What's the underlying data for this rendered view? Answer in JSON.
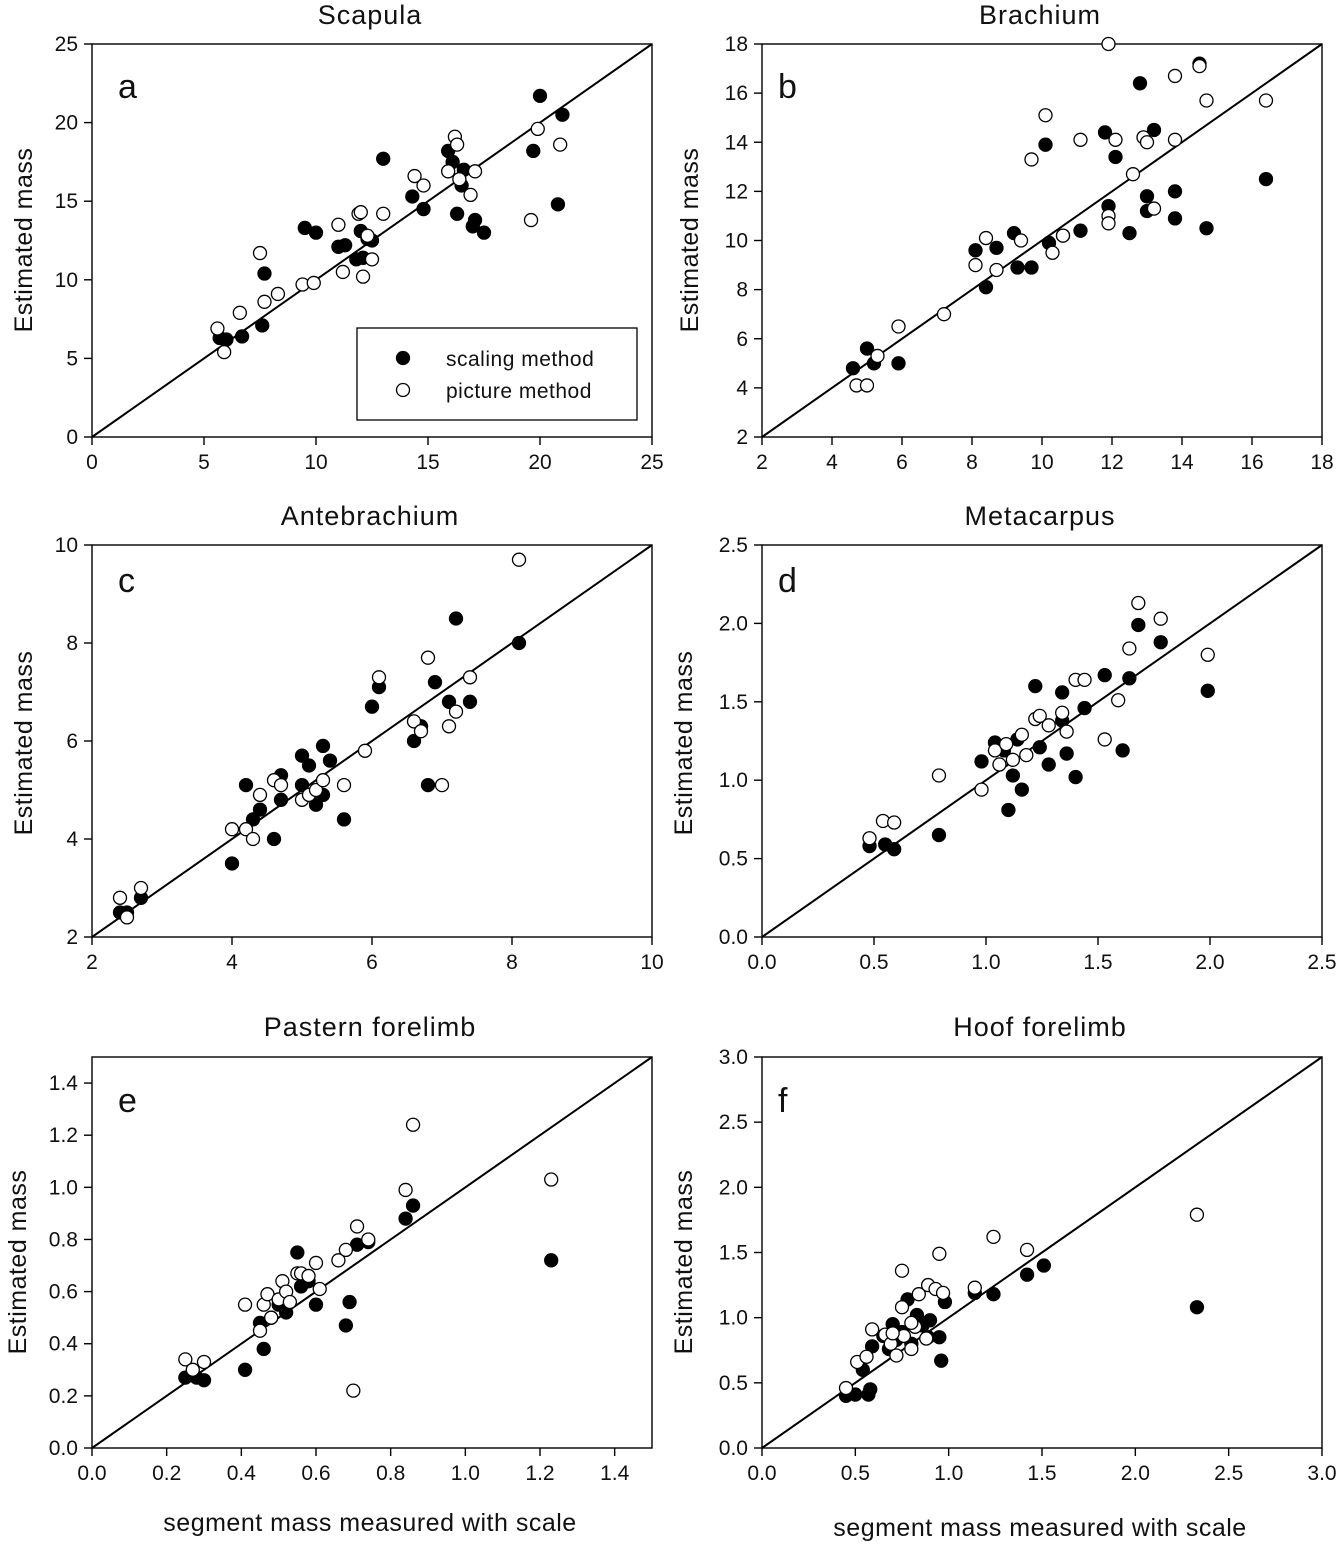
{
  "legend": {
    "scaling_label": "scaling method",
    "picture_label": "picture method"
  },
  "colors": {
    "filled": "#000000",
    "open": "#ffffff",
    "stroke": "#000000"
  },
  "chart_data": [
    {
      "type": "scatter",
      "panel": "a",
      "title": "Scapula",
      "ylabel": "Estimated mass",
      "xlabel": "",
      "xlim": [
        0,
        25
      ],
      "ylim": [
        0,
        25
      ],
      "xticks": [
        0,
        5,
        10,
        15,
        20,
        25
      ],
      "yticks": [
        0,
        5,
        10,
        15,
        20,
        25
      ],
      "tick_labels_x": [
        "0",
        "5",
        "10",
        "15",
        "20",
        "25"
      ],
      "tick_labels_y": [
        "0",
        "5",
        "10",
        "15",
        "20",
        "25"
      ],
      "identity_line": true,
      "legend": "bottom-right",
      "series": [
        {
          "name": "scaling method",
          "marker": "filled",
          "x": [
            5.7,
            6.0,
            6.7,
            7.6,
            7.7,
            9.5,
            10.0,
            11.0,
            11.3,
            11.8,
            12.0,
            12.1,
            12.3,
            12.5,
            13.0,
            14.3,
            14.8,
            15.9,
            16.1,
            16.3,
            16.5,
            16.6,
            17.0,
            17.1,
            17.5,
            19.7,
            20.0,
            20.8,
            21.0
          ],
          "y": [
            6.3,
            6.2,
            6.4,
            7.1,
            10.4,
            13.3,
            13.0,
            12.1,
            12.2,
            11.3,
            13.1,
            11.4,
            12.6,
            12.5,
            17.7,
            15.3,
            14.5,
            18.2,
            17.5,
            14.2,
            16.0,
            17.0,
            13.4,
            13.8,
            13.0,
            18.2,
            21.7,
            14.8,
            20.5
          ]
        },
        {
          "name": "picture method",
          "marker": "open",
          "x": [
            5.6,
            5.9,
            6.6,
            7.5,
            7.7,
            8.3,
            9.4,
            9.9,
            11.0,
            11.2,
            11.9,
            12.0,
            12.1,
            12.3,
            12.5,
            13.0,
            14.4,
            14.8,
            15.9,
            16.2,
            16.3,
            16.4,
            16.9,
            17.1,
            19.6,
            19.9,
            20.9
          ],
          "y": [
            6.9,
            5.4,
            7.9,
            11.7,
            8.6,
            9.1,
            9.7,
            9.8,
            13.5,
            10.5,
            14.2,
            14.3,
            10.2,
            12.8,
            11.3,
            14.2,
            16.6,
            16.0,
            16.9,
            19.1,
            18.6,
            16.4,
            15.4,
            16.9,
            13.8,
            19.6,
            18.6
          ]
        }
      ]
    },
    {
      "type": "scatter",
      "panel": "b",
      "title": "Brachium",
      "ylabel": "Estimated mass",
      "xlabel": "",
      "xlim": [
        2,
        18
      ],
      "ylim": [
        2,
        18
      ],
      "xticks": [
        2,
        4,
        6,
        8,
        10,
        12,
        14,
        16,
        18
      ],
      "yticks": [
        2,
        4,
        6,
        8,
        10,
        12,
        14,
        16,
        18
      ],
      "tick_labels_x": [
        "2",
        "4",
        "6",
        "8",
        "10",
        "12",
        "14",
        "16",
        "18"
      ],
      "tick_labels_y": [
        "2",
        "4",
        "6",
        "8",
        "10",
        "12",
        "14",
        "16",
        "18"
      ],
      "identity_line": true,
      "series": [
        {
          "name": "scaling method",
          "marker": "filled",
          "x": [
            4.6,
            5.0,
            5.2,
            5.9,
            8.1,
            8.4,
            8.7,
            9.2,
            9.3,
            9.7,
            10.1,
            10.2,
            10.6,
            11.1,
            11.8,
            11.9,
            12.1,
            12.5,
            12.8,
            13.0,
            13.0,
            13.2,
            13.8,
            13.8,
            14.5,
            14.7,
            16.4
          ],
          "y": [
            4.8,
            5.6,
            5.0,
            5.0,
            9.6,
            8.1,
            9.7,
            10.3,
            8.9,
            8.9,
            13.9,
            9.9,
            10.2,
            10.4,
            14.4,
            11.4,
            13.4,
            10.3,
            16.4,
            11.8,
            11.2,
            14.5,
            12.0,
            10.9,
            17.2,
            10.5,
            12.5
          ]
        },
        {
          "name": "picture method",
          "marker": "open",
          "x": [
            4.7,
            5.0,
            5.3,
            5.9,
            7.2,
            8.1,
            8.4,
            8.7,
            9.4,
            9.7,
            10.1,
            10.3,
            10.6,
            11.1,
            11.9,
            11.9,
            12.1,
            12.6,
            12.9,
            13.0,
            13.2,
            13.8,
            13.8,
            14.5,
            14.7,
            16.4,
            11.9
          ],
          "y": [
            4.1,
            4.1,
            5.3,
            6.5,
            7.0,
            9.0,
            10.1,
            8.8,
            10.0,
            13.3,
            15.1,
            9.5,
            10.2,
            14.1,
            11.0,
            10.7,
            14.1,
            12.7,
            14.2,
            14.0,
            11.3,
            14.1,
            16.7,
            17.1,
            15.7,
            15.7,
            18.0
          ]
        }
      ]
    },
    {
      "type": "scatter",
      "panel": "c",
      "title": "Antebrachium",
      "ylabel": "Estimated mass",
      "xlabel": "",
      "xlim": [
        2,
        10
      ],
      "ylim": [
        2,
        10
      ],
      "xticks": [
        2,
        4,
        6,
        8,
        10
      ],
      "yticks": [
        2,
        4,
        6,
        8,
        10
      ],
      "tick_labels_x": [
        "2",
        "4",
        "6",
        "8",
        "10"
      ],
      "tick_labels_y": [
        "2",
        "4",
        "6",
        "8",
        "10"
      ],
      "identity_line": true,
      "series": [
        {
          "name": "scaling method",
          "marker": "filled",
          "x": [
            2.4,
            2.5,
            2.7,
            4.0,
            4.2,
            4.3,
            4.4,
            4.6,
            4.7,
            4.7,
            5.0,
            5.0,
            5.1,
            5.2,
            5.3,
            5.3,
            5.4,
            5.6,
            6.0,
            6.1,
            6.6,
            6.7,
            6.8,
            6.9,
            7.1,
            7.2,
            7.4,
            8.1
          ],
          "y": [
            2.5,
            2.5,
            2.8,
            3.5,
            5.1,
            4.4,
            4.6,
            4.0,
            4.8,
            5.3,
            5.7,
            5.1,
            5.5,
            4.7,
            5.9,
            4.9,
            5.6,
            4.4,
            6.7,
            7.1,
            6.0,
            6.3,
            5.1,
            7.2,
            6.8,
            8.5,
            6.8,
            8.0
          ]
        },
        {
          "name": "picture method",
          "marker": "open",
          "x": [
            2.4,
            2.5,
            2.7,
            4.0,
            4.2,
            4.3,
            4.4,
            4.6,
            4.7,
            5.0,
            5.1,
            5.2,
            5.3,
            5.6,
            5.9,
            6.1,
            6.6,
            6.7,
            6.8,
            7.0,
            7.1,
            7.2,
            7.4,
            8.1
          ],
          "y": [
            2.8,
            2.4,
            3.0,
            4.2,
            4.2,
            4.0,
            4.9,
            5.2,
            5.1,
            4.8,
            4.9,
            5.0,
            5.2,
            5.1,
            5.8,
            7.3,
            6.4,
            6.2,
            7.7,
            5.1,
            6.3,
            6.6,
            7.3,
            9.7
          ]
        }
      ]
    },
    {
      "type": "scatter",
      "panel": "d",
      "title": "Metacarpus",
      "ylabel": "Estimated mass",
      "xlabel": "",
      "xlim": [
        0,
        2.5
      ],
      "ylim": [
        0,
        2.5
      ],
      "xticks": [
        0,
        0.5,
        1.0,
        1.5,
        2.0,
        2.5
      ],
      "yticks": [
        0,
        0.5,
        1.0,
        1.5,
        2.0,
        2.5
      ],
      "tick_labels_x": [
        "0.0",
        "0.5",
        "1.0",
        "1.5",
        "2.0",
        "2.5"
      ],
      "tick_labels_y": [
        "0.0",
        "0.5",
        "1.0",
        "1.5",
        "2.0",
        "2.5"
      ],
      "identity_line": true,
      "series": [
        {
          "name": "scaling method",
          "marker": "filled",
          "x": [
            0.48,
            0.55,
            0.59,
            0.79,
            0.98,
            1.04,
            1.08,
            1.1,
            1.12,
            1.14,
            1.16,
            1.22,
            1.24,
            1.28,
            1.34,
            1.34,
            1.36,
            1.4,
            1.44,
            1.53,
            1.61,
            1.64,
            1.68,
            1.78,
            1.99
          ],
          "y": [
            0.58,
            0.59,
            0.56,
            0.65,
            1.12,
            1.24,
            1.19,
            0.81,
            1.03,
            1.26,
            0.94,
            1.6,
            1.21,
            1.1,
            1.56,
            1.38,
            1.17,
            1.02,
            1.46,
            1.67,
            1.19,
            1.65,
            1.99,
            1.88,
            1.57
          ]
        },
        {
          "name": "picture method",
          "marker": "open",
          "x": [
            0.48,
            0.54,
            0.59,
            0.79,
            0.98,
            1.04,
            1.06,
            1.09,
            1.12,
            1.16,
            1.18,
            1.22,
            1.24,
            1.28,
            1.34,
            1.36,
            1.4,
            1.44,
            1.53,
            1.59,
            1.64,
            1.68,
            1.78,
            1.99
          ],
          "y": [
            0.63,
            0.74,
            0.73,
            1.03,
            0.94,
            1.19,
            1.1,
            1.23,
            1.13,
            1.29,
            1.16,
            1.39,
            1.41,
            1.35,
            1.43,
            1.31,
            1.64,
            1.64,
            1.26,
            1.51,
            1.84,
            2.13,
            2.03,
            1.8
          ]
        }
      ]
    },
    {
      "type": "scatter",
      "panel": "e",
      "title": "Pastern forelimb",
      "ylabel": "Estimated mass",
      "xlabel": "segment mass measured with scale",
      "xlim": [
        0,
        1.5
      ],
      "ylim": [
        0,
        1.5
      ],
      "xticks": [
        0,
        0.2,
        0.4,
        0.6,
        0.8,
        1.0,
        1.2,
        1.4
      ],
      "yticks": [
        0,
        0.2,
        0.4,
        0.6,
        0.8,
        1.0,
        1.2,
        1.4
      ],
      "tick_labels_x": [
        "0.0",
        "0.2",
        "0.4",
        "0.6",
        "0.8",
        "1.0",
        "1.2",
        "1.4"
      ],
      "tick_labels_y": [
        "0.0",
        "0.2",
        "0.4",
        "0.6",
        "0.8",
        "1.0",
        "1.2",
        "1.4"
      ],
      "identity_line": true,
      "series": [
        {
          "name": "scaling method",
          "marker": "filled",
          "x": [
            0.25,
            0.28,
            0.3,
            0.41,
            0.45,
            0.46,
            0.48,
            0.5,
            0.52,
            0.55,
            0.56,
            0.58,
            0.6,
            0.68,
            0.69,
            0.71,
            0.74,
            0.84,
            0.86,
            1.23
          ],
          "y": [
            0.27,
            0.27,
            0.26,
            0.3,
            0.48,
            0.38,
            0.5,
            0.55,
            0.52,
            0.75,
            0.62,
            0.64,
            0.55,
            0.47,
            0.56,
            0.78,
            0.79,
            0.88,
            0.93,
            0.72
          ]
        },
        {
          "name": "picture method",
          "marker": "open",
          "x": [
            0.25,
            0.27,
            0.3,
            0.41,
            0.45,
            0.46,
            0.47,
            0.48,
            0.5,
            0.51,
            0.52,
            0.53,
            0.55,
            0.56,
            0.58,
            0.6,
            0.61,
            0.66,
            0.68,
            0.7,
            0.71,
            0.74,
            0.84,
            0.86,
            1.23
          ],
          "y": [
            0.34,
            0.3,
            0.33,
            0.55,
            0.45,
            0.55,
            0.59,
            0.5,
            0.57,
            0.64,
            0.6,
            0.56,
            0.67,
            0.67,
            0.66,
            0.71,
            0.61,
            0.72,
            0.76,
            0.22,
            0.85,
            0.8,
            0.99,
            1.24,
            1.03
          ]
        }
      ]
    },
    {
      "type": "scatter",
      "panel": "f",
      "title": "Hoof forelimb",
      "ylabel": "Estimated mass",
      "xlabel": "segment mass measured with scale",
      "xlim": [
        0,
        3
      ],
      "ylim": [
        0,
        3
      ],
      "xticks": [
        0,
        0.5,
        1.0,
        1.5,
        2.0,
        2.5,
        3.0
      ],
      "yticks": [
        0,
        0.5,
        1.0,
        1.5,
        2.0,
        2.5,
        3.0
      ],
      "tick_labels_x": [
        "0.0",
        "0.5",
        "1.0",
        "1.5",
        "2.0",
        "2.5",
        "3.0"
      ],
      "tick_labels_y": [
        "0.0",
        "0.5",
        "1.0",
        "1.5",
        "2.0",
        "2.5",
        "3.0"
      ],
      "identity_line": true,
      "series": [
        {
          "name": "scaling method",
          "marker": "filled",
          "x": [
            0.45,
            0.5,
            0.54,
            0.57,
            0.58,
            0.59,
            0.65,
            0.68,
            0.7,
            0.72,
            0.75,
            0.78,
            0.8,
            0.83,
            0.86,
            0.89,
            0.9,
            0.95,
            0.96,
            0.98,
            1.14,
            1.24,
            1.42,
            1.51,
            2.33
          ],
          "y": [
            0.4,
            0.41,
            0.6,
            0.41,
            0.45,
            0.78,
            0.86,
            0.76,
            0.95,
            0.83,
            0.89,
            1.14,
            0.8,
            1.02,
            0.94,
            0.85,
            0.98,
            0.85,
            0.67,
            1.12,
            1.19,
            1.18,
            1.33,
            1.4,
            1.08
          ]
        },
        {
          "name": "picture method",
          "marker": "open",
          "x": [
            0.45,
            0.51,
            0.56,
            0.59,
            0.66,
            0.69,
            0.72,
            0.75,
            0.75,
            0.76,
            0.8,
            0.82,
            0.84,
            0.88,
            0.89,
            0.93,
            0.95,
            0.97,
            1.14,
            1.24,
            1.42,
            2.33,
            0.7,
            0.8
          ],
          "y": [
            0.46,
            0.66,
            0.7,
            0.91,
            0.87,
            0.8,
            0.71,
            1.08,
            1.36,
            0.86,
            0.76,
            0.93,
            1.18,
            0.84,
            1.25,
            1.22,
            1.49,
            1.19,
            1.23,
            1.62,
            1.52,
            1.79,
            0.88,
            0.96
          ]
        }
      ]
    }
  ]
}
